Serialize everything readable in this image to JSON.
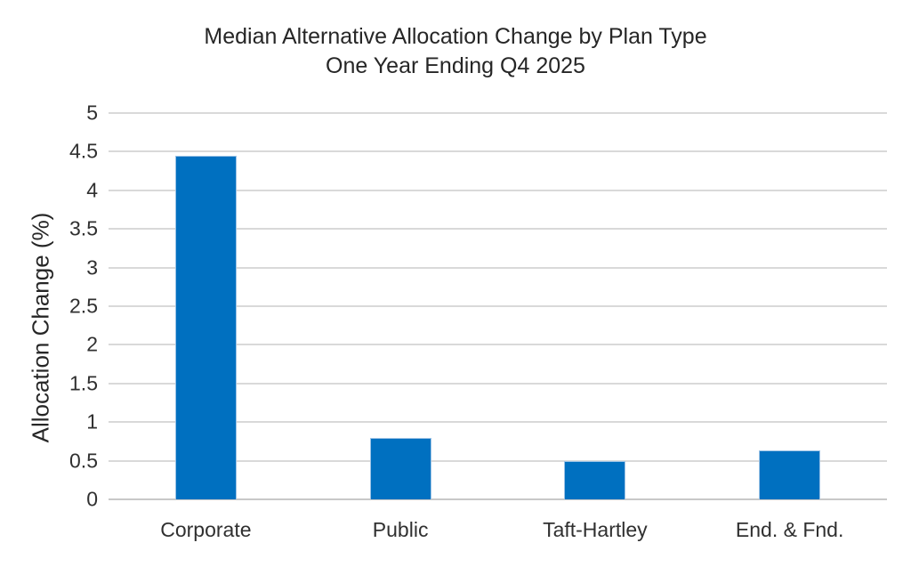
{
  "chart_data": {
    "type": "bar",
    "title": "Median Alternative Allocation Change by Plan Type",
    "subtitle": "One Year Ending Q4 2025",
    "ylabel": "Allocation Change (%)",
    "xlabel": "",
    "categories": [
      "Corporate",
      "Public",
      "Taft-Hartley",
      "End. & Fnd."
    ],
    "values": [
      4.45,
      0.8,
      0.5,
      0.63
    ],
    "ylim": [
      0,
      5
    ],
    "yticks": [
      0,
      0.5,
      1,
      1.5,
      2,
      2.5,
      3,
      3.5,
      4,
      4.5,
      5
    ],
    "grid": "horizontal",
    "legend": "none",
    "bar_color": "#0070C0",
    "bar_border_color": "#9DC3E6",
    "gridline_color": "#D9D9D9",
    "axisline_color": "#C8C8C8",
    "title_color": "#262626",
    "label_color": "#303030",
    "background": "#FFFFFF"
  }
}
